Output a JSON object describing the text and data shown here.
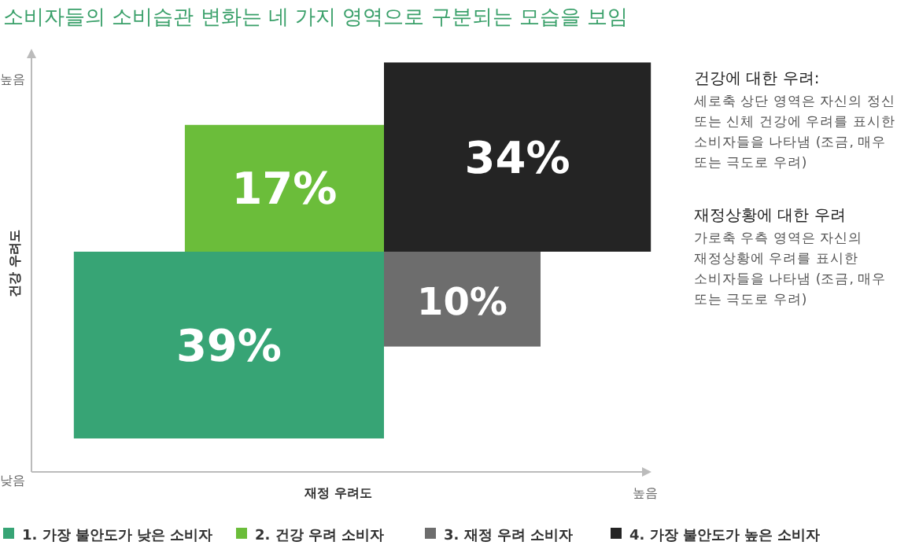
{
  "chart_data": {
    "type": "other",
    "title": "소비자들의 소비습관 변화는 네 가지 영역으로 구분되는 모습을 보임",
    "xlabel": "재정 우려도",
    "ylabel": "건강 우려도",
    "categories": [
      "1. 가장 불안도가 낮은 소비자",
      "2. 건강 우려 소비자",
      "3. 재정 우려 소비자",
      "4. 가장 불안도가 높은 소비자"
    ],
    "values": [
      39,
      17,
      10,
      34
    ],
    "value_labels": [
      "39%",
      "17%",
      "10%",
      "34%"
    ],
    "colors": [
      "#37a475",
      "#6bbd3a",
      "#6d6d6d",
      "#242424"
    ],
    "annotations": [
      "높음",
      "낮음",
      "높음",
      "건강에 대한 우려:",
      "세로축 상단 영역은 자신의 정신 또는 신체 건강에 우려를 표시한 소비자들을 나타냄 (조금, 매우 또는 극도로 우려)",
      "재정상황에 대한 우려",
      "가로축 우측 영역은 자신의 재정상황에 우려를 표시한 소비자들을 나타냄 (조금, 매우 또는 극도로 우려)"
    ]
  }
}
